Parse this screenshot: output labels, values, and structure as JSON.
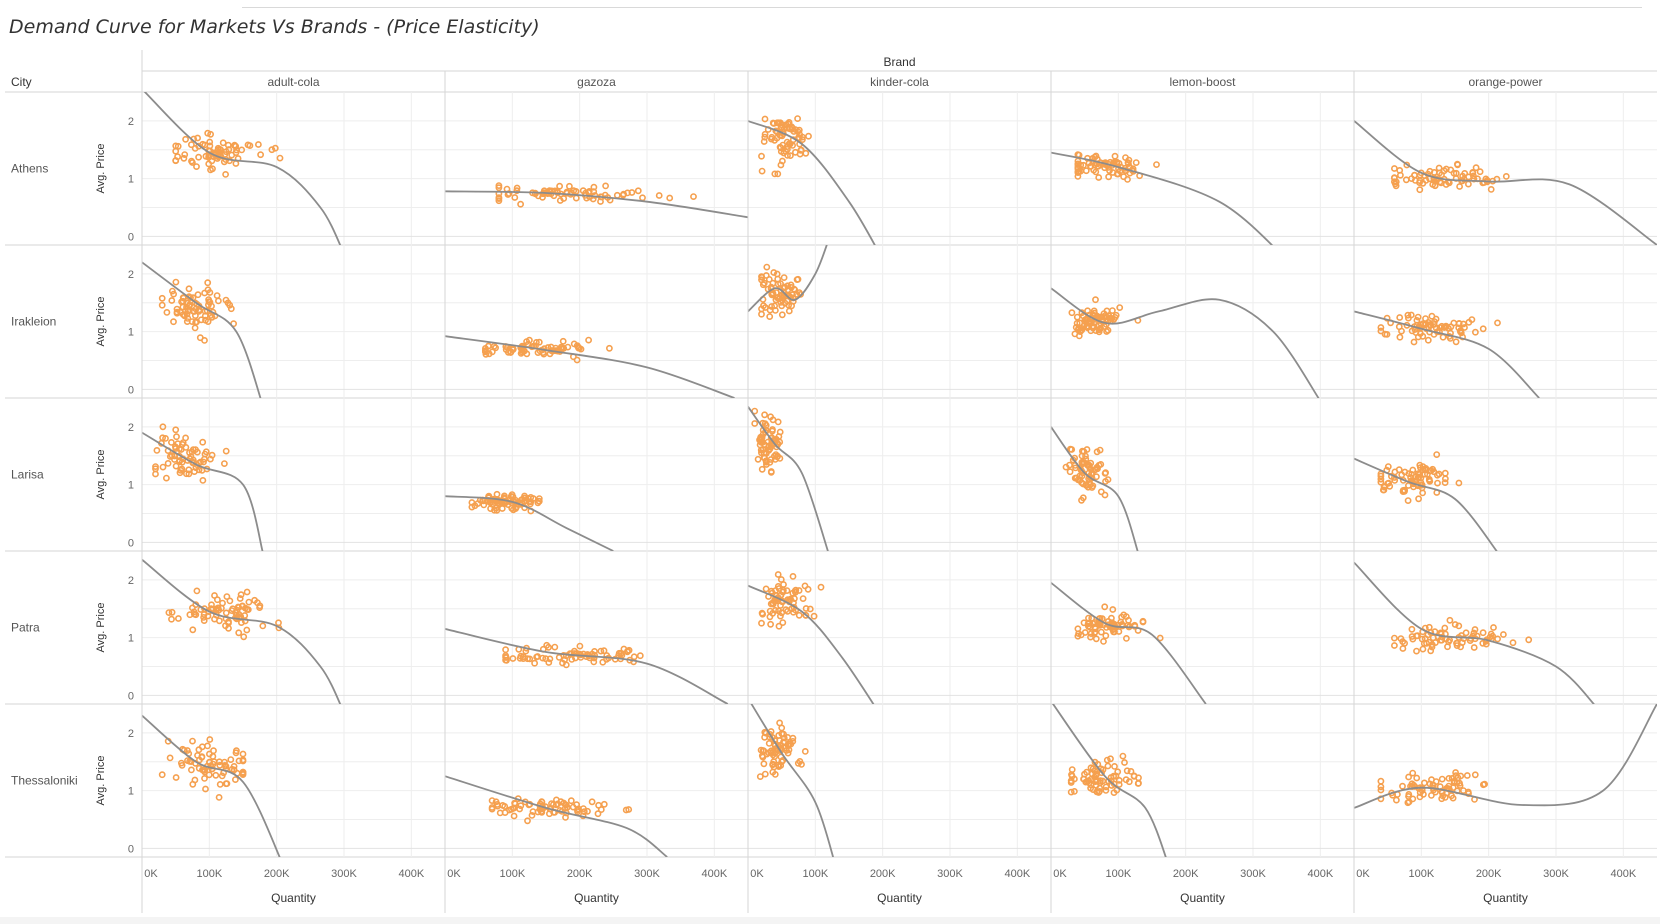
{
  "title": "Demand Curve for Markets Vs Brands - (Price Elasticity)",
  "chart_data": {
    "type": "scatter",
    "trend": "polynomial",
    "column_header": "Brand",
    "row_header": "City",
    "xlabel": "Quantity",
    "ylabel": "Avg. Price",
    "xlim": [
      0,
      450000
    ],
    "ylim": [
      -0.15,
      2.5
    ],
    "x_ticks": [
      0,
      100000,
      200000,
      300000,
      400000
    ],
    "x_tick_labels": [
      "0K",
      "100K",
      "200K",
      "300K",
      "400K"
    ],
    "y_ticks": [
      0,
      1,
      2
    ],
    "y_tick_labels": [
      "0",
      "1",
      "2"
    ],
    "colors": {
      "points": "#f5a04f",
      "trend": "#8c8c8c",
      "grid": "#eeeeee",
      "divider": "#d6d6d6"
    },
    "brands": [
      "adult-cola",
      "gazoza",
      "kinder-cola",
      "lemon-boost",
      "orange-power"
    ],
    "cities": [
      "Athens",
      "Irakleion",
      "Larisa",
      "Patra",
      "Thessaloniki"
    ],
    "panels": [
      [
        {
          "cx": 110000,
          "sx": 35000,
          "cy": 1.45,
          "sy": 0.15,
          "n": 75,
          "xmin": 50000,
          "xmax": 205000,
          "trend": [
            [
              0,
              2.55
            ],
            [
              100000,
              1.45
            ],
            [
              200000,
              1.2
            ],
            [
              265000,
              0.5
            ],
            [
              300000,
              -0.3
            ]
          ]
        },
        {
          "cx": 190000,
          "sx": 65000,
          "cy": 0.75,
          "sy": 0.07,
          "n": 75,
          "xmin": 80000,
          "xmax": 420000,
          "trend": [
            [
              0,
              0.78
            ],
            [
              150000,
              0.75
            ],
            [
              300000,
              0.6
            ],
            [
              450000,
              0.33
            ]
          ]
        },
        {
          "cx": 55000,
          "sx": 18000,
          "cy": 1.7,
          "sy": 0.2,
          "n": 70,
          "xmin": 20000,
          "xmax": 130000,
          "trend": [
            [
              0,
              2.0
            ],
            [
              80000,
              1.6
            ],
            [
              150000,
              0.6
            ],
            [
              200000,
              -0.4
            ]
          ]
        },
        {
          "cx": 75000,
          "sx": 30000,
          "cy": 1.2,
          "sy": 0.1,
          "n": 75,
          "xmin": 40000,
          "xmax": 170000,
          "trend": [
            [
              0,
              1.45
            ],
            [
              100000,
              1.2
            ],
            [
              250000,
              0.6
            ],
            [
              350000,
              -0.4
            ]
          ]
        },
        {
          "cx": 130000,
          "sx": 45000,
          "cy": 1.0,
          "sy": 0.1,
          "n": 75,
          "xmin": 60000,
          "xmax": 310000,
          "trend": [
            [
              0,
              2.0
            ],
            [
              100000,
              1.1
            ],
            [
              200000,
              0.95
            ],
            [
              320000,
              0.9
            ],
            [
              450000,
              -0.15
            ]
          ]
        }
      ],
      [
        {
          "cx": 75000,
          "sx": 25000,
          "cy": 1.45,
          "sy": 0.18,
          "n": 75,
          "xmin": 30000,
          "xmax": 140000,
          "trend": [
            [
              0,
              2.2
            ],
            [
              80000,
              1.5
            ],
            [
              140000,
              1.0
            ],
            [
              180000,
              -0.3
            ]
          ]
        },
        {
          "cx": 130000,
          "sx": 45000,
          "cy": 0.7,
          "sy": 0.06,
          "n": 75,
          "xmin": 60000,
          "xmax": 280000,
          "trend": [
            [
              0,
              0.92
            ],
            [
              150000,
              0.68
            ],
            [
              300000,
              0.38
            ],
            [
              430000,
              -0.15
            ]
          ]
        },
        {
          "cx": 45000,
          "sx": 15000,
          "cy": 1.7,
          "sy": 0.2,
          "n": 75,
          "xmin": 20000,
          "xmax": 90000,
          "trend": [
            [
              0,
              1.35
            ],
            [
              40000,
              1.75
            ],
            [
              70000,
              1.55
            ],
            [
              100000,
              2.0
            ],
            [
              120000,
              2.6
            ]
          ]
        },
        {
          "cx": 65000,
          "sx": 20000,
          "cy": 1.2,
          "sy": 0.12,
          "n": 75,
          "xmin": 25000,
          "xmax": 130000,
          "trend": [
            [
              0,
              1.75
            ],
            [
              80000,
              1.15
            ],
            [
              160000,
              1.35
            ],
            [
              250000,
              1.55
            ],
            [
              330000,
              1.0
            ],
            [
              400000,
              -0.2
            ]
          ]
        },
        {
          "cx": 110000,
          "sx": 35000,
          "cy": 1.05,
          "sy": 0.12,
          "n": 75,
          "xmin": 40000,
          "xmax": 220000,
          "trend": [
            [
              0,
              1.35
            ],
            [
              100000,
              1.05
            ],
            [
              200000,
              0.7
            ],
            [
              275000,
              -0.15
            ]
          ]
        }
      ],
      [
        {
          "cx": 65000,
          "sx": 25000,
          "cy": 1.45,
          "sy": 0.22,
          "n": 70,
          "xmin": 20000,
          "xmax": 140000,
          "trend": [
            [
              0,
              1.9
            ],
            [
              80000,
              1.35
            ],
            [
              150000,
              1.0
            ],
            [
              180000,
              -0.2
            ]
          ]
        },
        {
          "cx": 90000,
          "sx": 25000,
          "cy": 0.7,
          "sy": 0.08,
          "n": 75,
          "xmin": 40000,
          "xmax": 140000,
          "trend": [
            [
              0,
              0.8
            ],
            [
              100000,
              0.7
            ],
            [
              180000,
              0.25
            ],
            [
              250000,
              -0.15
            ]
          ]
        },
        {
          "cx": 30000,
          "sx": 10000,
          "cy": 1.7,
          "sy": 0.25,
          "n": 70,
          "xmin": 10000,
          "xmax": 60000,
          "trend": [
            [
              0,
              2.35
            ],
            [
              40000,
              1.7
            ],
            [
              80000,
              1.2
            ],
            [
              120000,
              -0.2
            ]
          ]
        },
        {
          "cx": 55000,
          "sx": 15000,
          "cy": 1.25,
          "sy": 0.18,
          "n": 70,
          "xmin": 20000,
          "xmax": 110000,
          "trend": [
            [
              0,
              2.0
            ],
            [
              50000,
              1.2
            ],
            [
              100000,
              0.8
            ],
            [
              130000,
              -0.2
            ]
          ]
        },
        {
          "cx": 95000,
          "sx": 30000,
          "cy": 1.05,
          "sy": 0.15,
          "n": 75,
          "xmin": 40000,
          "xmax": 170000,
          "trend": [
            [
              0,
              1.45
            ],
            [
              80000,
              1.05
            ],
            [
              150000,
              0.75
            ],
            [
              215000,
              -0.2
            ]
          ]
        }
      ],
      [
        {
          "cx": 120000,
          "sx": 40000,
          "cy": 1.45,
          "sy": 0.15,
          "n": 75,
          "xmin": 40000,
          "xmax": 210000,
          "trend": [
            [
              0,
              2.35
            ],
            [
              100000,
              1.45
            ],
            [
              200000,
              1.2
            ],
            [
              265000,
              0.5
            ],
            [
              300000,
              -0.3
            ]
          ]
        },
        {
          "cx": 180000,
          "sx": 60000,
          "cy": 0.7,
          "sy": 0.07,
          "n": 75,
          "xmin": 90000,
          "xmax": 340000,
          "trend": [
            [
              0,
              1.15
            ],
            [
              150000,
              0.75
            ],
            [
              300000,
              0.55
            ],
            [
              420000,
              -0.15
            ]
          ]
        },
        {
          "cx": 55000,
          "sx": 20000,
          "cy": 1.65,
          "sy": 0.2,
          "n": 70,
          "xmin": 20000,
          "xmax": 120000,
          "trend": [
            [
              0,
              1.9
            ],
            [
              80000,
              1.45
            ],
            [
              140000,
              0.65
            ],
            [
              200000,
              -0.4
            ]
          ]
        },
        {
          "cx": 85000,
          "sx": 30000,
          "cy": 1.2,
          "sy": 0.1,
          "n": 75,
          "xmin": 40000,
          "xmax": 170000,
          "trend": [
            [
              0,
              1.95
            ],
            [
              80000,
              1.25
            ],
            [
              150000,
              1.05
            ],
            [
              230000,
              -0.15
            ]
          ]
        },
        {
          "cx": 140000,
          "sx": 45000,
          "cy": 1.0,
          "sy": 0.1,
          "n": 75,
          "xmin": 60000,
          "xmax": 290000,
          "trend": [
            [
              0,
              2.3
            ],
            [
              100000,
              1.15
            ],
            [
              200000,
              0.95
            ],
            [
              300000,
              0.5
            ],
            [
              360000,
              -0.2
            ]
          ]
        }
      ],
      [
        {
          "cx": 95000,
          "sx": 30000,
          "cy": 1.45,
          "sy": 0.18,
          "n": 75,
          "xmin": 30000,
          "xmax": 150000,
          "trend": [
            [
              0,
              2.3
            ],
            [
              80000,
              1.5
            ],
            [
              150000,
              1.15
            ],
            [
              210000,
              -0.3
            ]
          ]
        },
        {
          "cx": 150000,
          "sx": 50000,
          "cy": 0.7,
          "sy": 0.08,
          "n": 75,
          "xmin": 70000,
          "xmax": 280000,
          "trend": [
            [
              0,
              1.25
            ],
            [
              150000,
              0.7
            ],
            [
              270000,
              0.35
            ],
            [
              330000,
              -0.15
            ]
          ]
        },
        {
          "cx": 45000,
          "sx": 15000,
          "cy": 1.7,
          "sy": 0.2,
          "n": 70,
          "xmin": 15000,
          "xmax": 100000,
          "trend": [
            [
              0,
              2.6
            ],
            [
              50000,
              1.65
            ],
            [
              100000,
              0.8
            ],
            [
              130000,
              -0.3
            ]
          ]
        },
        {
          "cx": 75000,
          "sx": 25000,
          "cy": 1.2,
          "sy": 0.12,
          "n": 75,
          "xmin": 30000,
          "xmax": 130000,
          "trend": [
            [
              0,
              2.55
            ],
            [
              80000,
              1.25
            ],
            [
              140000,
              0.7
            ],
            [
              175000,
              -0.3
            ]
          ]
        },
        {
          "cx": 120000,
          "sx": 40000,
          "cy": 1.05,
          "sy": 0.1,
          "n": 75,
          "xmin": 40000,
          "xmax": 240000,
          "trend": [
            [
              0,
              0.7
            ],
            [
              100000,
              1.05
            ],
            [
              250000,
              0.75
            ],
            [
              370000,
              1.0
            ],
            [
              450000,
              2.5
            ]
          ]
        }
      ]
    ]
  }
}
